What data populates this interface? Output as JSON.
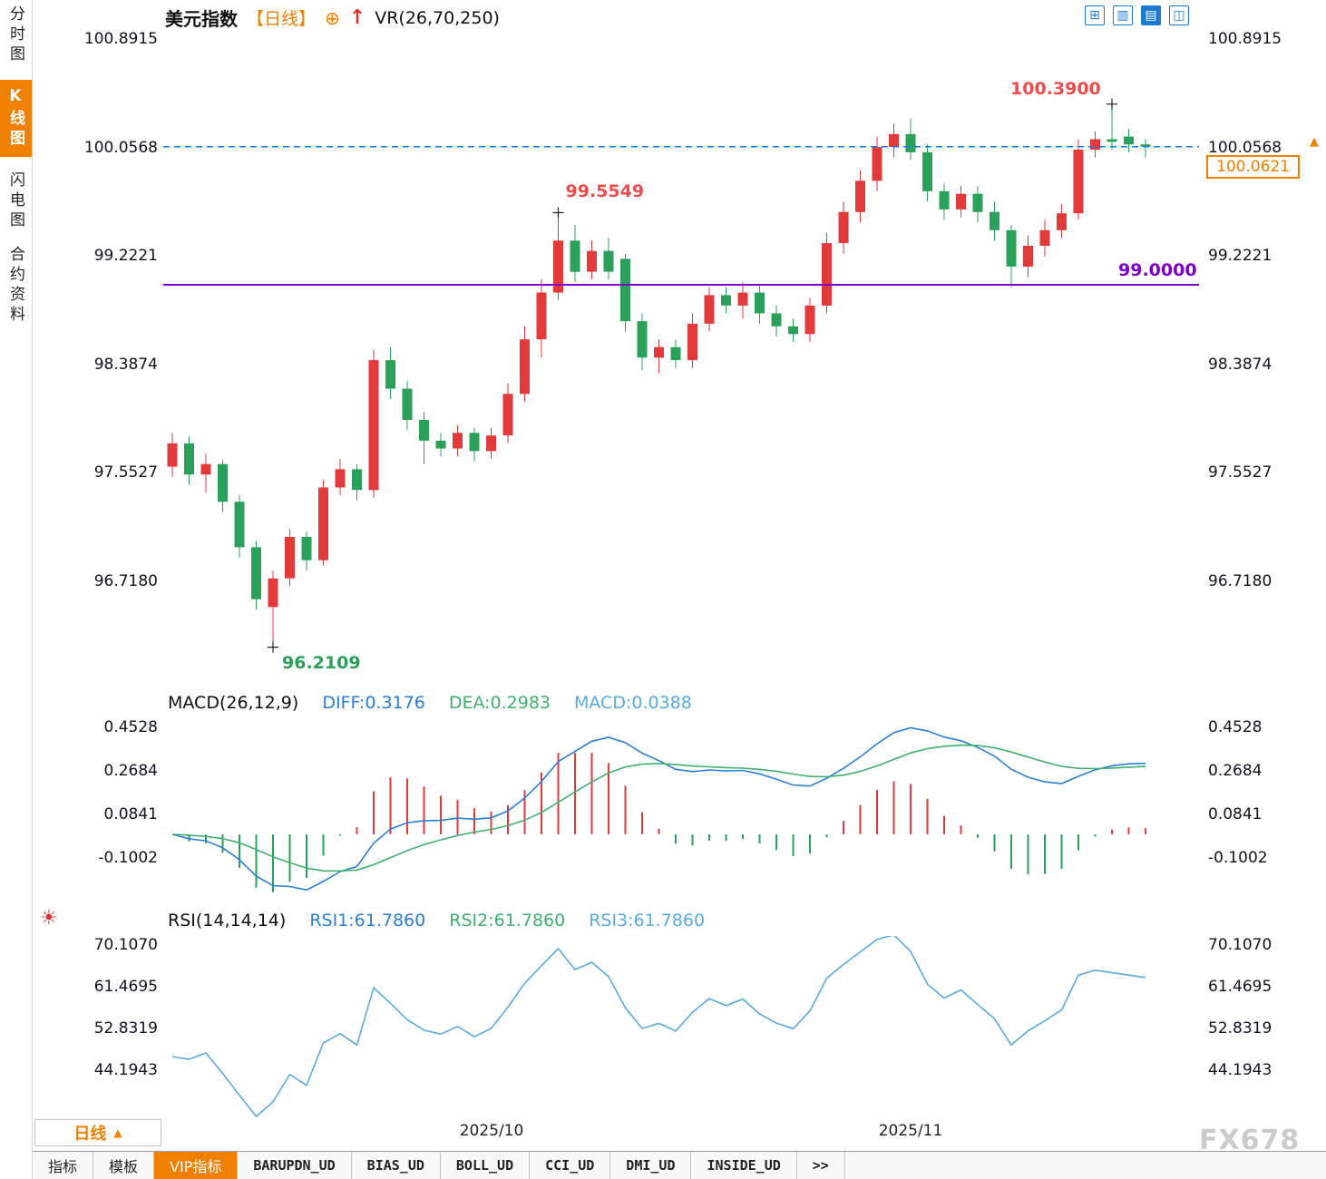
{
  "sidebar": {
    "items": [
      {
        "label": "分时图",
        "name": "sidebar-item-time-chart",
        "active": false
      },
      {
        "label": "K线图",
        "name": "sidebar-item-kline-chart",
        "active": true
      },
      {
        "label": "闪电图",
        "name": "sidebar-item-flash-chart",
        "active": false
      },
      {
        "label": "合约资料",
        "name": "sidebar-item-contract-info",
        "active": false
      }
    ]
  },
  "header": {
    "title": "美元指数",
    "period": "【日线】",
    "add_icon": "⊕",
    "up_arrow": "↑",
    "indicator": "VR(26,70,250)"
  },
  "toolbar": {
    "icons": [
      {
        "name": "grid-layout-icon",
        "glyph": "⊞",
        "active": false
      },
      {
        "name": "column-layout-icon",
        "glyph": "▥",
        "active": false
      },
      {
        "name": "chart-pane-layout-icon",
        "glyph": "▤",
        "active": true
      },
      {
        "name": "split-pane-layout-icon",
        "glyph": "◫",
        "active": false
      }
    ]
  },
  "glyphs": {
    "up_triangle": "▲",
    "sun": "☀"
  },
  "colors": {
    "up": "#e23a3a",
    "down": "#2aa05a",
    "accent_orange": "#f08000",
    "diff_line": "#2b7fd4",
    "dea_line": "#3faf6f",
    "rsi_line": "#57abdf",
    "dashed_line": "#1d7ad2",
    "support_line": "#7d00cc",
    "annotation_red": "#ef4c4c",
    "annotation_green": "#2aa05a"
  },
  "x_axis": {
    "labels": [
      "2025/10",
      "2025/11"
    ]
  },
  "footer": {
    "period": "日线",
    "tabs": [
      {
        "label": "指标",
        "name": "tab-indicators",
        "active": false,
        "mono": false
      },
      {
        "label": "模板",
        "name": "tab-templates",
        "active": false,
        "mono": false
      },
      {
        "label": "VIP指标",
        "name": "tab-vip-indicators",
        "active": true,
        "mono": false
      },
      {
        "label": "BARUPDN_UD",
        "name": "tab-barupdn-ud",
        "active": false,
        "mono": true
      },
      {
        "label": "BIAS_UD",
        "name": "tab-bias-ud",
        "active": false,
        "mono": true
      },
      {
        "label": "BOLL_UD",
        "name": "tab-boll-ud",
        "active": false,
        "mono": true
      },
      {
        "label": "CCI_UD",
        "name": "tab-cci-ud",
        "active": false,
        "mono": true
      },
      {
        "label": "DMI_UD",
        "name": "tab-dmi-ud",
        "active": false,
        "mono": true
      },
      {
        "label": "INSIDE_UD",
        "name": "tab-inside-ud",
        "active": false,
        "mono": true
      },
      {
        "label": ">>",
        "name": "tab-more",
        "active": false,
        "mono": true
      }
    ]
  },
  "watermark": "FX678",
  "chart_data": [
    {
      "type": "candlestick",
      "title": "美元指数 日线",
      "y_ticks": [
        "100.8915",
        "100.0568",
        "99.2221",
        "98.3874",
        "97.5527",
        "96.7180"
      ],
      "ylim": [
        95.908,
        100.982
      ],
      "x_ticks": [
        {
          "label": "2025/10",
          "index": 19
        },
        {
          "label": "2025/11",
          "index": 44
        }
      ],
      "last_price": "100.0621",
      "axis_marker": "100.0568",
      "ohlc": [
        [
          97.6,
          97.86,
          97.52,
          97.78
        ],
        [
          97.78,
          97.83,
          97.46,
          97.54
        ],
        [
          97.54,
          97.7,
          97.4,
          97.62
        ],
        [
          97.62,
          97.65,
          97.25,
          97.33
        ],
        [
          97.33,
          97.38,
          96.9,
          96.98
        ],
        [
          96.98,
          97.03,
          96.5,
          96.58
        ],
        [
          96.52,
          96.8,
          96.2109,
          96.74
        ],
        [
          96.74,
          97.12,
          96.68,
          97.06
        ],
        [
          97.06,
          97.1,
          96.8,
          96.88
        ],
        [
          96.88,
          97.5,
          96.84,
          97.44
        ],
        [
          97.44,
          97.66,
          97.38,
          97.58
        ],
        [
          97.58,
          97.62,
          97.34,
          97.42
        ],
        [
          97.42,
          98.5,
          97.36,
          98.42
        ],
        [
          98.42,
          98.52,
          98.12,
          98.2
        ],
        [
          98.2,
          98.26,
          97.88,
          97.96
        ],
        [
          97.96,
          98.02,
          97.62,
          97.8
        ],
        [
          97.8,
          97.86,
          97.68,
          97.74
        ],
        [
          97.74,
          97.92,
          97.68,
          97.86
        ],
        [
          97.86,
          97.9,
          97.64,
          97.72
        ],
        [
          97.72,
          97.9,
          97.66,
          97.84
        ],
        [
          97.84,
          98.24,
          97.78,
          98.16
        ],
        [
          98.16,
          98.68,
          98.1,
          98.58
        ],
        [
          98.58,
          99.04,
          98.44,
          98.94
        ],
        [
          98.94,
          99.5549,
          98.88,
          99.34
        ],
        [
          99.34,
          99.46,
          99.02,
          99.1
        ],
        [
          99.1,
          99.34,
          99.04,
          99.26
        ],
        [
          99.26,
          99.36,
          99.04,
          99.1
        ],
        [
          99.2,
          99.24,
          98.64,
          98.72
        ],
        [
          98.72,
          98.78,
          98.34,
          98.44
        ],
        [
          98.44,
          98.58,
          98.32,
          98.52
        ],
        [
          98.52,
          98.58,
          98.36,
          98.42
        ],
        [
          98.42,
          98.78,
          98.36,
          98.7
        ],
        [
          98.7,
          98.98,
          98.64,
          98.92
        ],
        [
          98.92,
          98.98,
          98.78,
          98.84
        ],
        [
          98.84,
          99.02,
          98.74,
          98.94
        ],
        [
          98.94,
          99.0,
          98.7,
          98.78
        ],
        [
          98.78,
          98.84,
          98.6,
          98.68
        ],
        [
          98.68,
          98.74,
          98.56,
          98.62
        ],
        [
          98.62,
          98.9,
          98.56,
          98.84
        ],
        [
          98.84,
          99.4,
          98.78,
          99.32
        ],
        [
          99.32,
          99.64,
          99.24,
          99.56
        ],
        [
          99.56,
          99.88,
          99.48,
          99.8
        ],
        [
          99.8,
          100.14,
          99.72,
          100.06
        ],
        [
          100.06,
          100.24,
          99.98,
          100.16
        ],
        [
          100.16,
          100.28,
          99.96,
          100.02
        ],
        [
          100.02,
          100.08,
          99.64,
          99.72
        ],
        [
          99.72,
          99.78,
          99.5,
          99.58
        ],
        [
          99.58,
          99.76,
          99.52,
          99.7
        ],
        [
          99.7,
          99.76,
          99.48,
          99.56
        ],
        [
          99.56,
          99.64,
          99.34,
          99.42
        ],
        [
          99.42,
          99.46,
          98.98,
          99.14
        ],
        [
          99.14,
          99.38,
          99.06,
          99.3
        ],
        [
          99.3,
          99.5,
          99.22,
          99.42
        ],
        [
          99.42,
          99.62,
          99.36,
          99.55
        ],
        [
          99.55,
          100.12,
          99.5,
          100.04
        ],
        [
          100.04,
          100.18,
          99.98,
          100.12
        ],
        [
          100.12,
          100.39,
          100.04,
          100.1
        ],
        [
          100.14,
          100.2,
          100.02,
          100.08
        ],
        [
          100.08,
          100.12,
          99.98,
          100.0621
        ]
      ],
      "hlines": [
        {
          "value": 100.0621,
          "color": "#1d7ad2",
          "style": "dashed"
        },
        {
          "value": 99.0,
          "color": "#7d00cc",
          "style": "solid",
          "label": "99.0000"
        }
      ],
      "annotations": [
        {
          "text": "100.3900",
          "index": 56,
          "value": 100.39,
          "color": "#ef4c4c",
          "placement": "above-left"
        },
        {
          "text": "99.5549",
          "index": 23,
          "value": 99.5549,
          "color": "#ef4c4c",
          "placement": "above-right"
        },
        {
          "text": "96.2109",
          "index": 6,
          "value": 96.2109,
          "color": "#2aa05a",
          "placement": "below-right"
        }
      ]
    },
    {
      "type": "macd",
      "labels": {
        "title": "MACD(26,12,9)",
        "diff": "DIFF:0.3176",
        "dea": "DEA:0.2983",
        "macd": "MACD:0.0388"
      },
      "params": [
        26,
        12,
        9
      ],
      "y_ticks": [
        "0.4528",
        "0.2684",
        "0.0841",
        "-0.1002"
      ],
      "ylim": [
        -0.3151,
        0.4989
      ]
    },
    {
      "type": "rsi",
      "labels": {
        "title": "RSI(14,14,14)",
        "rsi1": "RSI1:61.7860",
        "rsi2": "RSI2:61.7860",
        "rsi3": "RSI3:61.7860"
      },
      "params": [
        14,
        14,
        14
      ],
      "y_ticks": [
        "70.1070",
        "61.4695",
        "52.8319",
        "44.1943"
      ],
      "ylim": [
        32.92,
        71.98
      ]
    }
  ]
}
